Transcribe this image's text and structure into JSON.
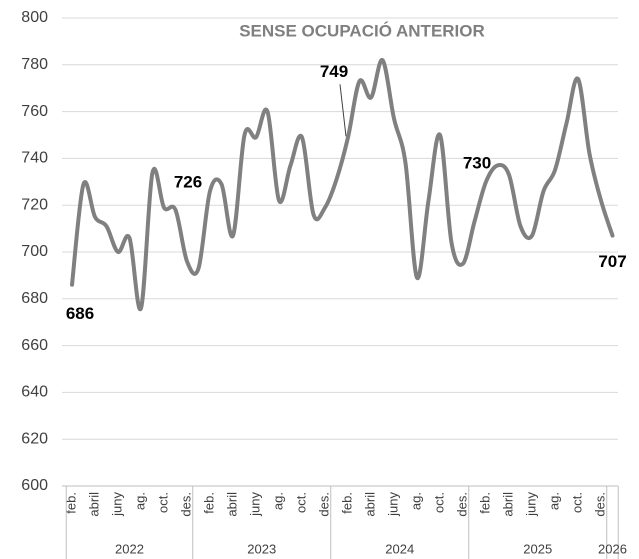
{
  "chart_data": {
    "type": "line",
    "title": "SENSE OCUPACIÓ ANTERIOR",
    "categories": [
      "feb.",
      null,
      "abril",
      null,
      "juny",
      null,
      "ag.",
      null,
      "oct.",
      null,
      "des.",
      null,
      "feb.",
      null,
      "abril",
      null,
      "juny",
      null,
      "ag.",
      null,
      "oct.",
      null,
      "des.",
      null,
      "feb.",
      null,
      "abril",
      null,
      "juny",
      null,
      "ag.",
      null,
      "oct.",
      null,
      "des.",
      null,
      "feb.",
      null,
      "abril",
      null,
      "juny",
      null,
      "ag.",
      null,
      "oct.",
      null,
      "des.",
      null
    ],
    "groups": [
      {
        "label": "2022",
        "count": 11
      },
      {
        "label": "2023",
        "count": 12
      },
      {
        "label": "2024",
        "count": 12
      },
      {
        "label": "2025",
        "count": 12
      },
      {
        "label": "2026",
        "count": 1
      }
    ],
    "series": [
      {
        "name": "Sense ocupació anterior",
        "color": "#808080",
        "values": [
          686,
          729,
          715,
          711,
          700,
          706,
          676,
          734,
          719,
          718,
          696,
          693,
          726,
          729,
          707,
          750,
          749,
          760,
          722,
          737,
          749,
          716,
          719,
          731,
          749,
          773,
          766,
          782,
          757,
          738,
          689,
          722,
          750,
          704,
          695,
          713,
          730,
          737,
          733,
          711,
          707,
          726,
          735,
          755,
          774,
          742,
          722,
          707
        ],
        "value_labels": [
          "686",
          null,
          null,
          null,
          null,
          null,
          null,
          null,
          null,
          null,
          null,
          null,
          "726",
          null,
          null,
          null,
          null,
          null,
          null,
          null,
          null,
          null,
          null,
          null,
          "749",
          null,
          null,
          null,
          null,
          null,
          null,
          null,
          null,
          null,
          null,
          null,
          "730",
          null,
          null,
          null,
          null,
          null,
          null,
          null,
          null,
          null,
          null,
          "707"
        ]
      }
    ],
    "ylim": [
      600,
      800
    ],
    "yticks": [
      600,
      620,
      640,
      660,
      680,
      700,
      720,
      740,
      760,
      780,
      800
    ],
    "grid": true
  }
}
